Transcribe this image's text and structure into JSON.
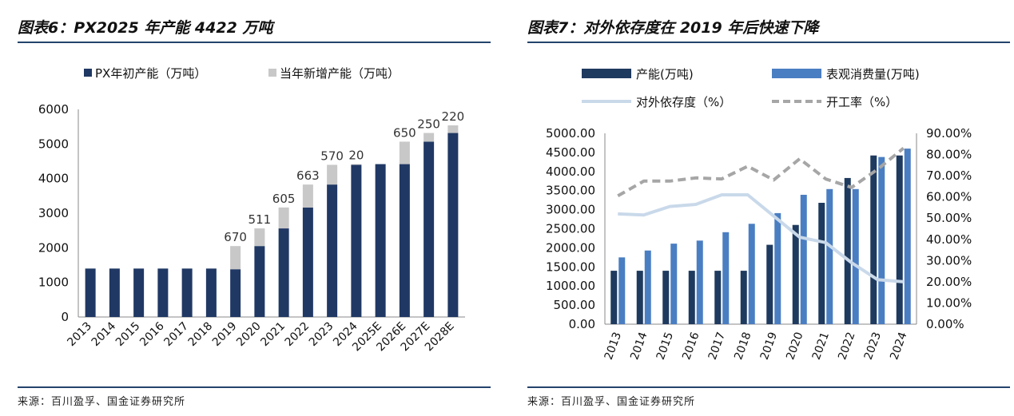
{
  "left": {
    "title": "图表6：PX2025 年产能 4422 万吨",
    "source": "来源：百川盈孚、国金证券研究所",
    "chart_data": {
      "type": "bar",
      "stacked": true,
      "categories": [
        "2013",
        "2014",
        "2015",
        "2016",
        "2017",
        "2018",
        "2019",
        "2020",
        "2021",
        "2022",
        "2023",
        "2024",
        "2025E",
        "2026E",
        "2027E",
        "2028E"
      ],
      "series": [
        {
          "name": "PX年初产能（万吨）",
          "color": "#203864",
          "values": [
            1400,
            1400,
            1400,
            1400,
            1400,
            1400,
            1380,
            2050,
            2560,
            3165,
            3828,
            4398,
            4418,
            4418,
            5068,
            5318
          ]
        },
        {
          "name": "当年新增产能（万吨）",
          "color": "#c8c8c8",
          "values": [
            0,
            0,
            0,
            0,
            0,
            0,
            670,
            511,
            605,
            663,
            570,
            20,
            0,
            650,
            250,
            220
          ]
        }
      ],
      "data_labels": [
        "",
        "",
        "",
        "",
        "",
        "",
        "670",
        "511",
        "605",
        "663",
        "570",
        "20",
        "",
        "650",
        "250",
        "220"
      ],
      "ylim": [
        0,
        6000
      ],
      "yticks": [
        0,
        1000,
        2000,
        3000,
        4000,
        5000,
        6000
      ],
      "xlabel": "",
      "ylabel": ""
    }
  },
  "right": {
    "title": "图表7：对外依存度在 2019 年后快速下降",
    "source": "来源：百川盈孚、国金证券研究所",
    "chart_data": {
      "type": "bar+line",
      "categories": [
        "2013",
        "2014",
        "2015",
        "2016",
        "2017",
        "2018",
        "2019",
        "2020",
        "2021",
        "2022",
        "2023",
        "2024"
      ],
      "bars": [
        {
          "name": "产能(万吨)",
          "color": "#1f3a5f",
          "values": [
            1400,
            1400,
            1400,
            1400,
            1400,
            1400,
            2080,
            2600,
            3180,
            3830,
            4420,
            4420
          ]
        },
        {
          "name": "表观消费量(万吨)",
          "color": "#4a7ec2",
          "values": [
            1750,
            1930,
            2110,
            2190,
            2410,
            2630,
            2910,
            3390,
            3540,
            3540,
            4380,
            4600
          ]
        }
      ],
      "lines": [
        {
          "name": "对外依存度（%）",
          "color": "#c9d9ea",
          "dash": false,
          "values": [
            52,
            51.5,
            55.5,
            56.5,
            61,
            61,
            51,
            41,
            38.5,
            29,
            21,
            20
          ]
        },
        {
          "name": "开工率（%）",
          "color": "#a6a6a6",
          "dash": true,
          "values": [
            60.5,
            67.5,
            67.5,
            69,
            68.5,
            74.5,
            68,
            78,
            68.5,
            64.5,
            73,
            83
          ]
        }
      ],
      "y_left": {
        "lim": [
          0,
          5000
        ],
        "ticks": [
          "0.00",
          "500.00",
          "1000.00",
          "1500.00",
          "2000.00",
          "2500.00",
          "3000.00",
          "3500.00",
          "4000.00",
          "4500.00",
          "5000.00"
        ]
      },
      "y_right": {
        "lim": [
          0,
          90
        ],
        "ticks": [
          "0.00%",
          "10.00%",
          "20.00%",
          "30.00%",
          "40.00%",
          "50.00%",
          "60.00%",
          "70.00%",
          "80.00%",
          "90.00%"
        ]
      }
    }
  }
}
